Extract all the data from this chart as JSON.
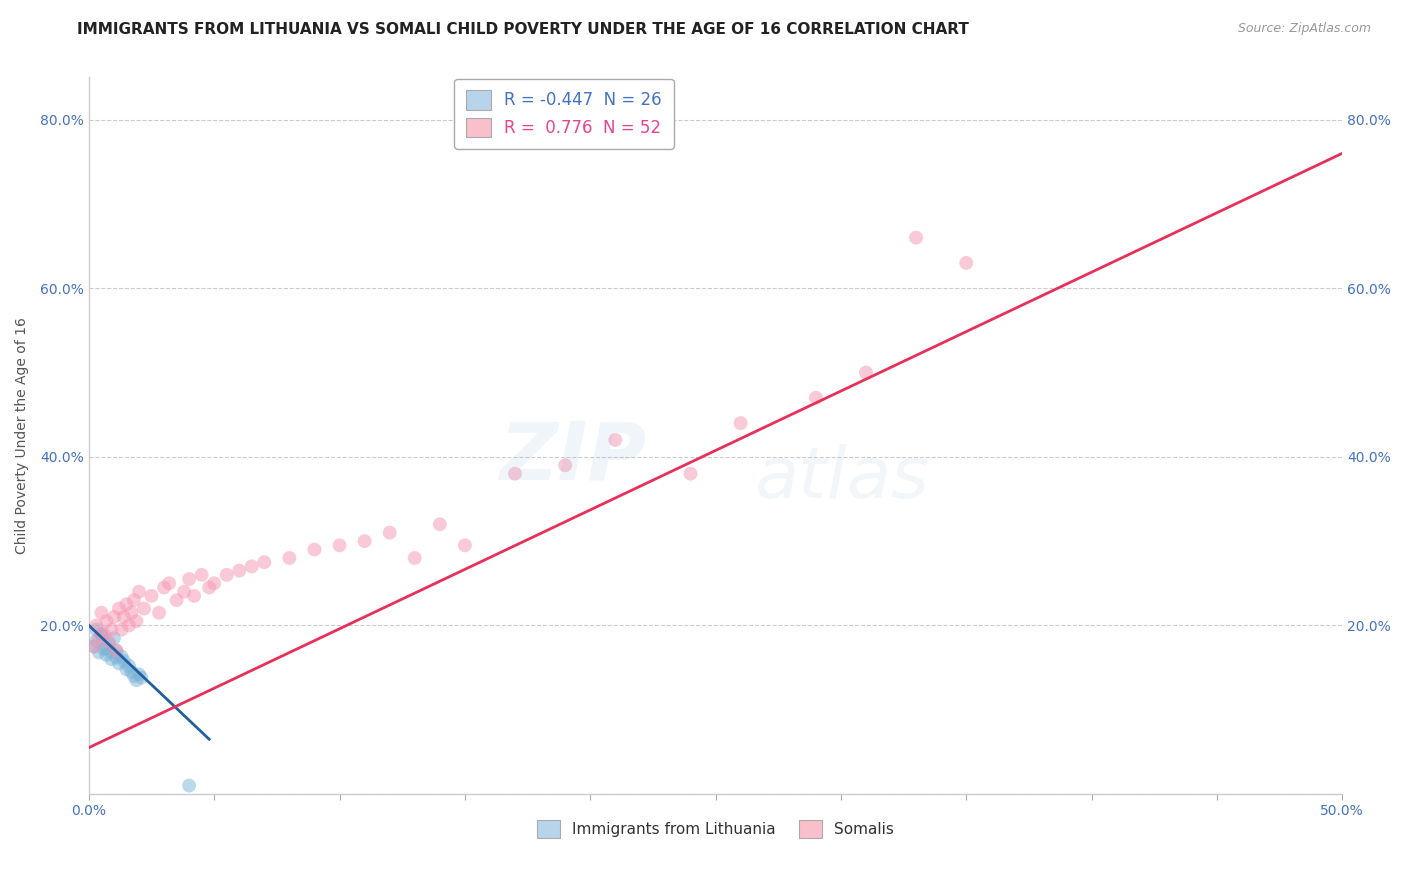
{
  "title": "IMMIGRANTS FROM LITHUANIA VS SOMALI CHILD POVERTY UNDER THE AGE OF 16 CORRELATION CHART",
  "source": "Source: ZipAtlas.com",
  "ylabel": "Child Poverty Under the Age of 16",
  "xlim": [
    0.0,
    0.5
  ],
  "ylim": [
    0.0,
    0.85
  ],
  "yticks": [
    0.0,
    0.2,
    0.4,
    0.6,
    0.8
  ],
  "ytick_labels": [
    "",
    "20.0%",
    "40.0%",
    "60.0%",
    "80.0%"
  ],
  "xtick_vals": [
    0.0,
    0.05,
    0.1,
    0.15,
    0.2,
    0.25,
    0.3,
    0.35,
    0.4,
    0.45,
    0.5
  ],
  "xtick_labels": [
    "0.0%",
    "",
    "",
    "",
    "",
    "",
    "",
    "",
    "",
    "",
    "50.0%"
  ],
  "legend_entries": [
    {
      "label": "Immigrants from Lithuania",
      "color": "#b8d4ea",
      "R": "-0.447",
      "N": "26"
    },
    {
      "label": "Somalis",
      "color": "#f9c0cc",
      "R": "0.776",
      "N": "52"
    }
  ],
  "blue_scatter_x": [
    0.002,
    0.003,
    0.004,
    0.005,
    0.006,
    0.007,
    0.008,
    0.009,
    0.01,
    0.011,
    0.012,
    0.013,
    0.014,
    0.015,
    0.016,
    0.017,
    0.018,
    0.019,
    0.02,
    0.021,
    0.003,
    0.005,
    0.007,
    0.009,
    0.011,
    0.04
  ],
  "blue_scatter_y": [
    0.175,
    0.182,
    0.168,
    0.19,
    0.172,
    0.165,
    0.178,
    0.16,
    0.185,
    0.17,
    0.155,
    0.163,
    0.158,
    0.148,
    0.152,
    0.145,
    0.14,
    0.135,
    0.142,
    0.138,
    0.195,
    0.188,
    0.173,
    0.168,
    0.162,
    0.01
  ],
  "pink_scatter_x": [
    0.002,
    0.003,
    0.004,
    0.005,
    0.006,
    0.007,
    0.008,
    0.009,
    0.01,
    0.011,
    0.012,
    0.013,
    0.014,
    0.015,
    0.016,
    0.017,
    0.018,
    0.019,
    0.02,
    0.022,
    0.025,
    0.028,
    0.03,
    0.032,
    0.035,
    0.038,
    0.04,
    0.042,
    0.045,
    0.048,
    0.05,
    0.055,
    0.06,
    0.065,
    0.07,
    0.08,
    0.09,
    0.1,
    0.11,
    0.12,
    0.13,
    0.14,
    0.15,
    0.17,
    0.19,
    0.21,
    0.24,
    0.26,
    0.29,
    0.31,
    0.33,
    0.35
  ],
  "pink_scatter_y": [
    0.175,
    0.2,
    0.185,
    0.215,
    0.19,
    0.205,
    0.18,
    0.195,
    0.21,
    0.17,
    0.22,
    0.195,
    0.21,
    0.225,
    0.2,
    0.215,
    0.23,
    0.205,
    0.24,
    0.22,
    0.235,
    0.215,
    0.245,
    0.25,
    0.23,
    0.24,
    0.255,
    0.235,
    0.26,
    0.245,
    0.25,
    0.26,
    0.265,
    0.27,
    0.275,
    0.28,
    0.29,
    0.295,
    0.3,
    0.31,
    0.28,
    0.32,
    0.295,
    0.38,
    0.39,
    0.42,
    0.38,
    0.44,
    0.47,
    0.5,
    0.66,
    0.63
  ],
  "blue_line_x": [
    0.0,
    0.048
  ],
  "blue_line_y": [
    0.2,
    0.065
  ],
  "pink_line_x": [
    0.0,
    0.5
  ],
  "pink_line_y": [
    0.055,
    0.76
  ],
  "scatter_size": 100,
  "scatter_alpha": 0.5,
  "blue_scatter_color": "#7ab3d8",
  "pink_scatter_color": "#f794b0",
  "blue_line_color": "#2060a0",
  "pink_line_color": "#e8305a",
  "grid_color": "#cccccc",
  "grid_style": "--",
  "background_color": "#ffffff",
  "title_fontsize": 11,
  "axis_label_fontsize": 10,
  "tick_fontsize": 10,
  "tick_color": "#4472c4",
  "watermark_zip_color": "#8ab0d4",
  "watermark_atlas_color": "#a0b8c8"
}
